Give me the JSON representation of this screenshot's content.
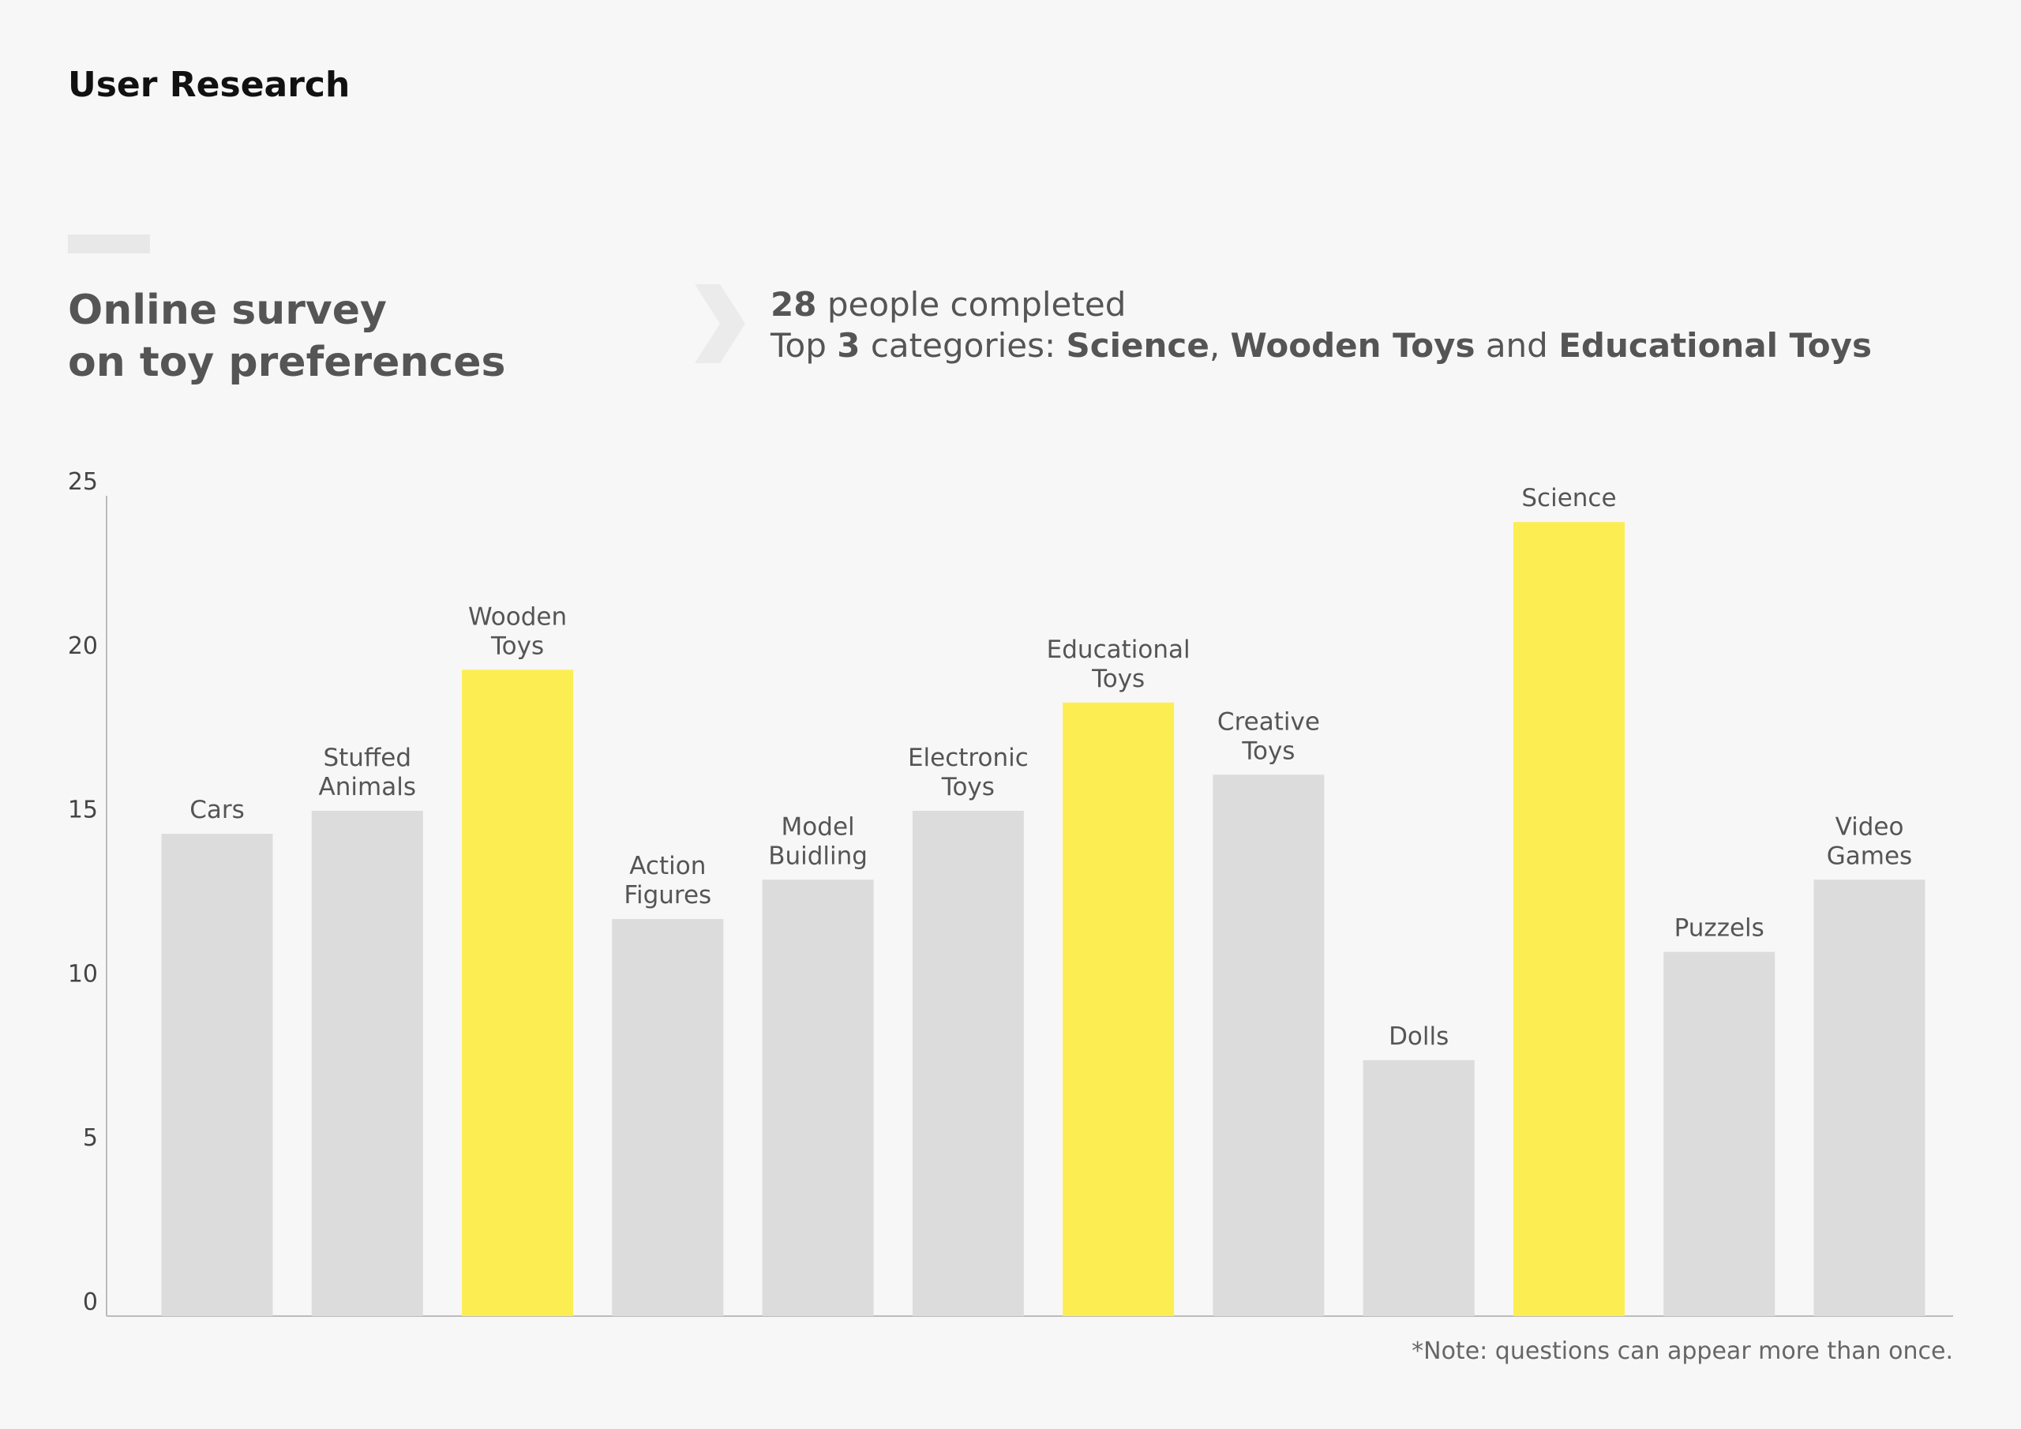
{
  "header": {
    "section": "User Research",
    "title_line1": "Online survey",
    "title_line2": "on toy preferences"
  },
  "summary": {
    "count": "28",
    "count_text": "people completed",
    "top_prefix": "Top",
    "top_number": "3",
    "top_suffix": "categories:",
    "cat1": "Science",
    "sep1": ",",
    "cat2": "Wooden Toys",
    "sep2": "and",
    "cat3": "Educational Toys"
  },
  "note": "*Note: questions can appear more than once.",
  "colors": {
    "highlight": "#fcee52",
    "default_bar": "#dcdcdc",
    "axis": "#bbbbbb",
    "label": "#555555",
    "chevron": "#ebebeb"
  },
  "icons": {
    "chevron": "chevron-right-icon"
  },
  "chart_data": {
    "type": "bar",
    "ylim": [
      0,
      25
    ],
    "yticks": [
      0,
      5,
      10,
      15,
      20,
      25
    ],
    "grid": false,
    "categories": [
      [
        "Cars"
      ],
      [
        "Stuffed",
        "Animals"
      ],
      [
        "Wooden",
        "Toys"
      ],
      [
        "Action",
        "Figures"
      ],
      [
        "Model",
        "Buidling"
      ],
      [
        "Electronic",
        "Toys"
      ],
      [
        "Educational",
        "Toys"
      ],
      [
        "Creative",
        "Toys"
      ],
      [
        "Dolls"
      ],
      [
        "Science"
      ],
      [
        "Puzzels"
      ],
      [
        "Video",
        "Games"
      ]
    ],
    "values": [
      14.7,
      15.4,
      19.7,
      12.1,
      13.3,
      15.4,
      18.7,
      16.5,
      7.8,
      24.2,
      11.1,
      13.3
    ],
    "highlighted": [
      false,
      false,
      true,
      false,
      false,
      false,
      true,
      false,
      false,
      true,
      false,
      false
    ]
  }
}
